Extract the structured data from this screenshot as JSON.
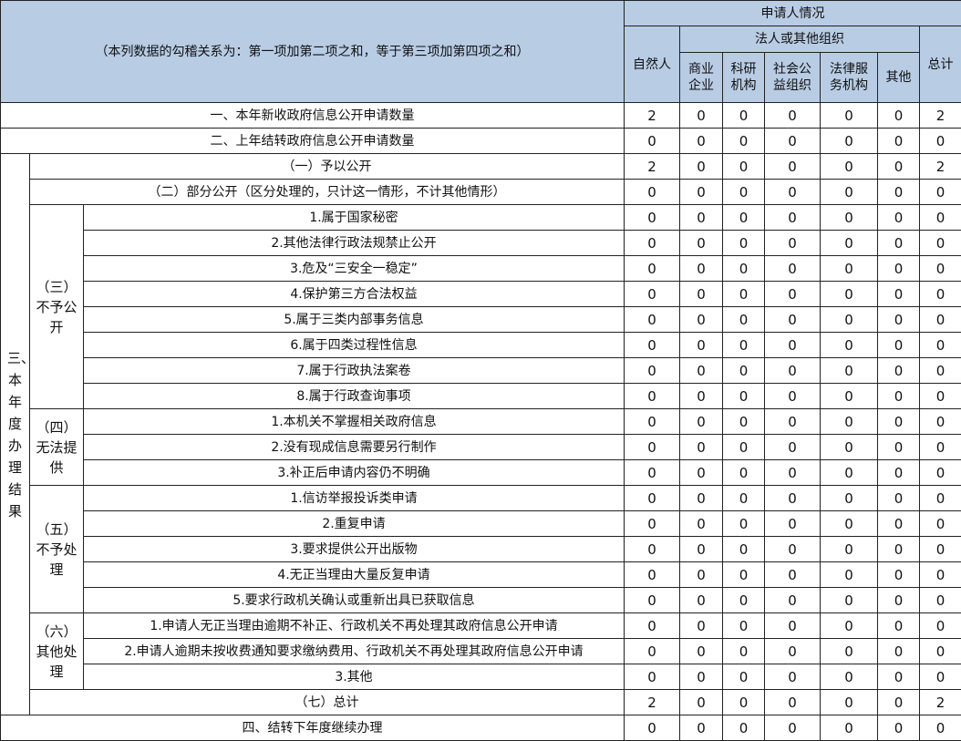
{
  "header": {
    "left_note": "（本列数据的勾稽关系为：第一项加第二项之和，等于第三项加第四项之和）",
    "applicant": "申请人情况",
    "natural_person": "自然人",
    "legal_group": "法人或其他组织",
    "total": "总计",
    "org_types": [
      "商业企业",
      "科研机构",
      "社会公益组织",
      "法律服务机构",
      "其他"
    ]
  },
  "rows": {
    "new_requests": {
      "label": "一、本年新收政府信息公开申请数量",
      "values": [
        2,
        0,
        0,
        0,
        0,
        0,
        2
      ]
    },
    "carried_over": {
      "label": "二、上年结转政府信息公开申请数量",
      "values": [
        0,
        0,
        0,
        0,
        0,
        0,
        0
      ]
    },
    "section3_label": "三、本年度办理结果",
    "disclosed": {
      "label": "（一）予以公开",
      "values": [
        2,
        0,
        0,
        0,
        0,
        0,
        2
      ]
    },
    "partial": {
      "label": "（二）部分公开（区分处理的，只计这一情形，不计其他情形）",
      "values": [
        0,
        0,
        0,
        0,
        0,
        0,
        0
      ]
    },
    "groups": [
      {
        "label": "（三）不予公开",
        "items": [
          {
            "label": "1.属于国家秘密",
            "values": [
              0,
              0,
              0,
              0,
              0,
              0,
              0
            ]
          },
          {
            "label": "2.其他法律行政法规禁止公开",
            "values": [
              0,
              0,
              0,
              0,
              0,
              0,
              0
            ]
          },
          {
            "label": "3.危及“三安全一稳定”",
            "values": [
              0,
              0,
              0,
              0,
              0,
              0,
              0
            ]
          },
          {
            "label": "4.保护第三方合法权益",
            "values": [
              0,
              0,
              0,
              0,
              0,
              0,
              0
            ]
          },
          {
            "label": "5.属于三类内部事务信息",
            "values": [
              0,
              0,
              0,
              0,
              0,
              0,
              0
            ]
          },
          {
            "label": "6.属于四类过程性信息",
            "values": [
              0,
              0,
              0,
              0,
              0,
              0,
              0
            ]
          },
          {
            "label": "7.属于行政执法案卷",
            "values": [
              0,
              0,
              0,
              0,
              0,
              0,
              0
            ]
          },
          {
            "label": "8.属于行政查询事项",
            "values": [
              0,
              0,
              0,
              0,
              0,
              0,
              0
            ]
          }
        ]
      },
      {
        "label": "（四）无法提供",
        "items": [
          {
            "label": "1.本机关不掌握相关政府信息",
            "values": [
              0,
              0,
              0,
              0,
              0,
              0,
              0
            ]
          },
          {
            "label": "2.没有现成信息需要另行制作",
            "values": [
              0,
              0,
              0,
              0,
              0,
              0,
              0
            ]
          },
          {
            "label": "3.补正后申请内容仍不明确",
            "values": [
              0,
              0,
              0,
              0,
              0,
              0,
              0
            ]
          }
        ]
      },
      {
        "label": "（五）不予处理",
        "items": [
          {
            "label": "1.信访举报投诉类申请",
            "values": [
              0,
              0,
              0,
              0,
              0,
              0,
              0
            ]
          },
          {
            "label": "2.重复申请",
            "values": [
              0,
              0,
              0,
              0,
              0,
              0,
              0
            ]
          },
          {
            "label": "3.要求提供公开出版物",
            "values": [
              0,
              0,
              0,
              0,
              0,
              0,
              0
            ]
          },
          {
            "label": "4.无正当理由大量反复申请",
            "values": [
              0,
              0,
              0,
              0,
              0,
              0,
              0
            ]
          },
          {
            "label": "5.要求行政机关确认或重新出具已获取信息",
            "values": [
              0,
              0,
              0,
              0,
              0,
              0,
              0
            ]
          }
        ]
      },
      {
        "label": "（六）其他处理",
        "items": [
          {
            "label": "1.申请人无正当理由逾期不补正、行政机关不再处理其政府信息公开申请",
            "values": [
              0,
              0,
              0,
              0,
              0,
              0,
              0
            ]
          },
          {
            "label": "2.申请人逾期未按收费通知要求缴纳费用、行政机关不再处理其政府信息公开申请",
            "values": [
              0,
              0,
              0,
              0,
              0,
              0,
              0
            ]
          },
          {
            "label": "3.其他",
            "values": [
              0,
              0,
              0,
              0,
              0,
              0,
              0
            ]
          }
        ]
      }
    ],
    "total": {
      "label": "（七）总计",
      "values": [
        2,
        0,
        0,
        0,
        0,
        0,
        2
      ]
    },
    "carry_forward": {
      "label": "四、结转下年度继续办理",
      "values": [
        0,
        0,
        0,
        0,
        0,
        0,
        0
      ]
    }
  },
  "colors": {
    "header_bg": "#b8cce4",
    "border": "#222222"
  }
}
